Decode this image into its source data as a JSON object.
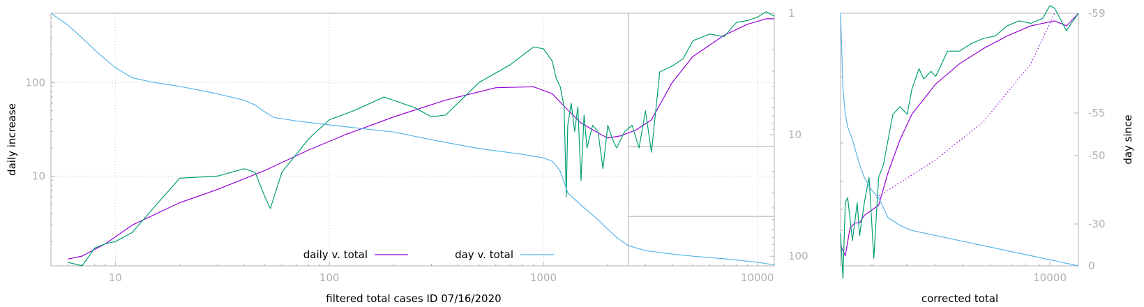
{
  "colors": {
    "daily": "#9400d3",
    "raw": "#009e73",
    "day": "#56b4e9",
    "axis": "#b0b0b0",
    "grid": "#cccccc"
  },
  "chart_data": [
    {
      "type": "line",
      "xlabel": "filtered total cases ID 07/16/2020",
      "ylabel": "daily increase",
      "y2label": "",
      "xscale": "log",
      "yscale": "log",
      "y2scale": "log",
      "y2_reversed": true,
      "xlim": [
        5,
        12000
      ],
      "ylim": [
        1.1,
        550
      ],
      "y2lim": [
        1,
        120
      ],
      "x_ticks": [
        10,
        100,
        1000,
        10000
      ],
      "x_tick_labels": [
        "10",
        "100",
        "1000",
        "10000"
      ],
      "y_ticks": [
        10,
        100
      ],
      "y_tick_labels": [
        "10",
        "100"
      ],
      "y2_ticks": [
        1,
        10,
        100
      ],
      "y2_tick_labels": [
        "1",
        "10",
        "100"
      ],
      "grid": true,
      "legend_position": "bottom-center",
      "reference_lines": {
        "vertical_x": 2500,
        "horizontal_y2": [
          12.5,
          47
        ]
      },
      "series": [
        {
          "name": "daily v. total",
          "color": "#9400d3",
          "axis": "y",
          "x": [
            6,
            7,
            9,
            12,
            20,
            30,
            50,
            80,
            120,
            200,
            350,
            600,
            900,
            1100,
            1300,
            1500,
            1800,
            2000,
            2300,
            2700,
            3200,
            4000,
            5000,
            7000,
            9000,
            11000,
            12000
          ],
          "y": [
            1.3,
            1.4,
            1.9,
            3.0,
            5.2,
            7.2,
            11.5,
            19,
            28,
            43,
            65,
            88,
            90,
            76,
            51,
            37,
            29,
            25.5,
            27,
            31,
            40,
            100,
            190,
            320,
            420,
            480,
            480
          ]
        },
        {
          "name": "",
          "color": "#009e73",
          "axis": "y",
          "x": [
            6,
            7,
            8,
            9,
            10,
            12,
            15,
            20,
            30,
            40,
            45,
            50,
            53,
            60,
            80,
            100,
            130,
            180,
            250,
            300,
            350,
            500,
            700,
            900,
            1000,
            1100,
            1150,
            1200,
            1250,
            1280,
            1300,
            1350,
            1400,
            1450,
            1500,
            1550,
            1600,
            1700,
            1800,
            1900,
            2000,
            2100,
            2200,
            2400,
            2600,
            2800,
            3000,
            3200,
            3500,
            4000,
            4500,
            5000,
            6000,
            7000,
            8000,
            9000,
            10000,
            11000,
            12000
          ],
          "y": [
            1.2,
            1.1,
            1.7,
            1.9,
            2.0,
            2.5,
            4.5,
            9.5,
            10,
            12,
            11,
            6,
            4.5,
            11,
            25,
            40,
            50,
            70,
            54,
            43,
            45,
            100,
            155,
            240,
            230,
            170,
            110,
            90,
            55,
            6,
            35,
            60,
            30,
            55,
            9,
            45,
            20,
            35,
            30,
            12,
            35,
            25,
            20,
            30,
            35,
            20,
            50,
            18,
            130,
            150,
            180,
            280,
            330,
            310,
            440,
            460,
            500,
            570,
            510
          ]
        },
        {
          "name": "day v. total",
          "color": "#56b4e9",
          "axis": "y2",
          "x": [
            5,
            6,
            7,
            8,
            9,
            10,
            12,
            15,
            20,
            30,
            40,
            45,
            50,
            55,
            70,
            100,
            150,
            200,
            300,
            500,
            800,
            1000,
            1100,
            1150,
            1200,
            1300,
            1500,
            1800,
            2000,
            2200,
            2500,
            3000,
            4000,
            5000,
            7000,
            10000,
            12000
          ],
          "y": [
            1,
            1.25,
            1.6,
            2.0,
            2.4,
            2.8,
            3.4,
            3.7,
            4.0,
            4.6,
            5.2,
            5.7,
            6.5,
            7.2,
            7.7,
            8.3,
            9.0,
            9.5,
            11,
            13,
            14.5,
            15.5,
            16.5,
            18,
            20,
            30,
            38,
            50,
            60,
            70,
            82,
            90,
            96,
            100,
            105,
            112,
            118
          ]
        }
      ]
    },
    {
      "type": "line",
      "xlabel": "corrected total",
      "ylabel": "",
      "y2label": "day since",
      "x_ticks": [
        10000
      ],
      "x_tick_labels": [
        "10000"
      ],
      "y2_ticks": [
        -59,
        -55,
        -50,
        -30,
        0
      ],
      "y2_tick_labels": [
        "-59",
        "-55",
        "-50",
        "-30",
        "0"
      ],
      "grid": false,
      "series": [
        {
          "name": "",
          "color": "#9400d3",
          "axis": "y",
          "x": [
            0,
            0.02,
            0.04,
            0.06,
            0.08,
            0.1,
            0.13,
            0.16,
            0.2,
            0.25,
            0.3,
            0.4,
            0.5,
            0.6,
            0.7,
            0.8,
            0.9,
            0.95,
            1.0
          ],
          "y": [
            0.08,
            0.04,
            0.15,
            0.17,
            0.17,
            0.2,
            0.22,
            0.24,
            0.37,
            0.5,
            0.6,
            0.72,
            0.8,
            0.86,
            0.91,
            0.95,
            0.97,
            0.95,
            1.0
          ]
        },
        {
          "name": "",
          "color": "#9400d3",
          "axis": "y",
          "style": "dotted",
          "x": [
            0.15,
            0.4,
            0.6,
            0.8,
            0.9
          ],
          "y": [
            0.27,
            0.42,
            0.57,
            0.8,
            1.0
          ]
        },
        {
          "name": "",
          "color": "#009e73",
          "axis": "y",
          "x": [
            0,
            0.01,
            0.02,
            0.03,
            0.05,
            0.07,
            0.08,
            0.1,
            0.12,
            0.14,
            0.16,
            0.18,
            0.2,
            0.22,
            0.25,
            0.28,
            0.3,
            0.33,
            0.35,
            0.38,
            0.4,
            0.45,
            0.5,
            0.55,
            0.6,
            0.65,
            0.7,
            0.75,
            0.8,
            0.85,
            0.88,
            0.9,
            0.95,
            0.97,
            1.0
          ],
          "y": [
            0.13,
            -0.05,
            0.25,
            0.27,
            0.1,
            0.25,
            0.12,
            0.25,
            0.35,
            0.03,
            0.35,
            0.4,
            0.5,
            0.6,
            0.63,
            0.6,
            0.7,
            0.78,
            0.74,
            0.77,
            0.75,
            0.85,
            0.85,
            0.88,
            0.9,
            0.91,
            0.95,
            0.97,
            0.96,
            0.98,
            1.03,
            1.02,
            0.93,
            0.96,
            1.0
          ]
        },
        {
          "name": "",
          "color": "#56b4e9",
          "axis": "y",
          "x": [
            0,
            0.01,
            0.02,
            0.03,
            0.05,
            0.08,
            0.1,
            0.13,
            0.16,
            0.2,
            0.25,
            0.3,
            0.4,
            0.5,
            0.6,
            0.7,
            0.8,
            0.9,
            1.0
          ],
          "y": [
            1.0,
            0.7,
            0.6,
            0.55,
            0.5,
            0.4,
            0.35,
            0.3,
            0.27,
            0.19,
            0.16,
            0.14,
            0.12,
            0.1,
            0.08,
            0.06,
            0.04,
            0.02,
            0.0
          ]
        }
      ]
    }
  ]
}
